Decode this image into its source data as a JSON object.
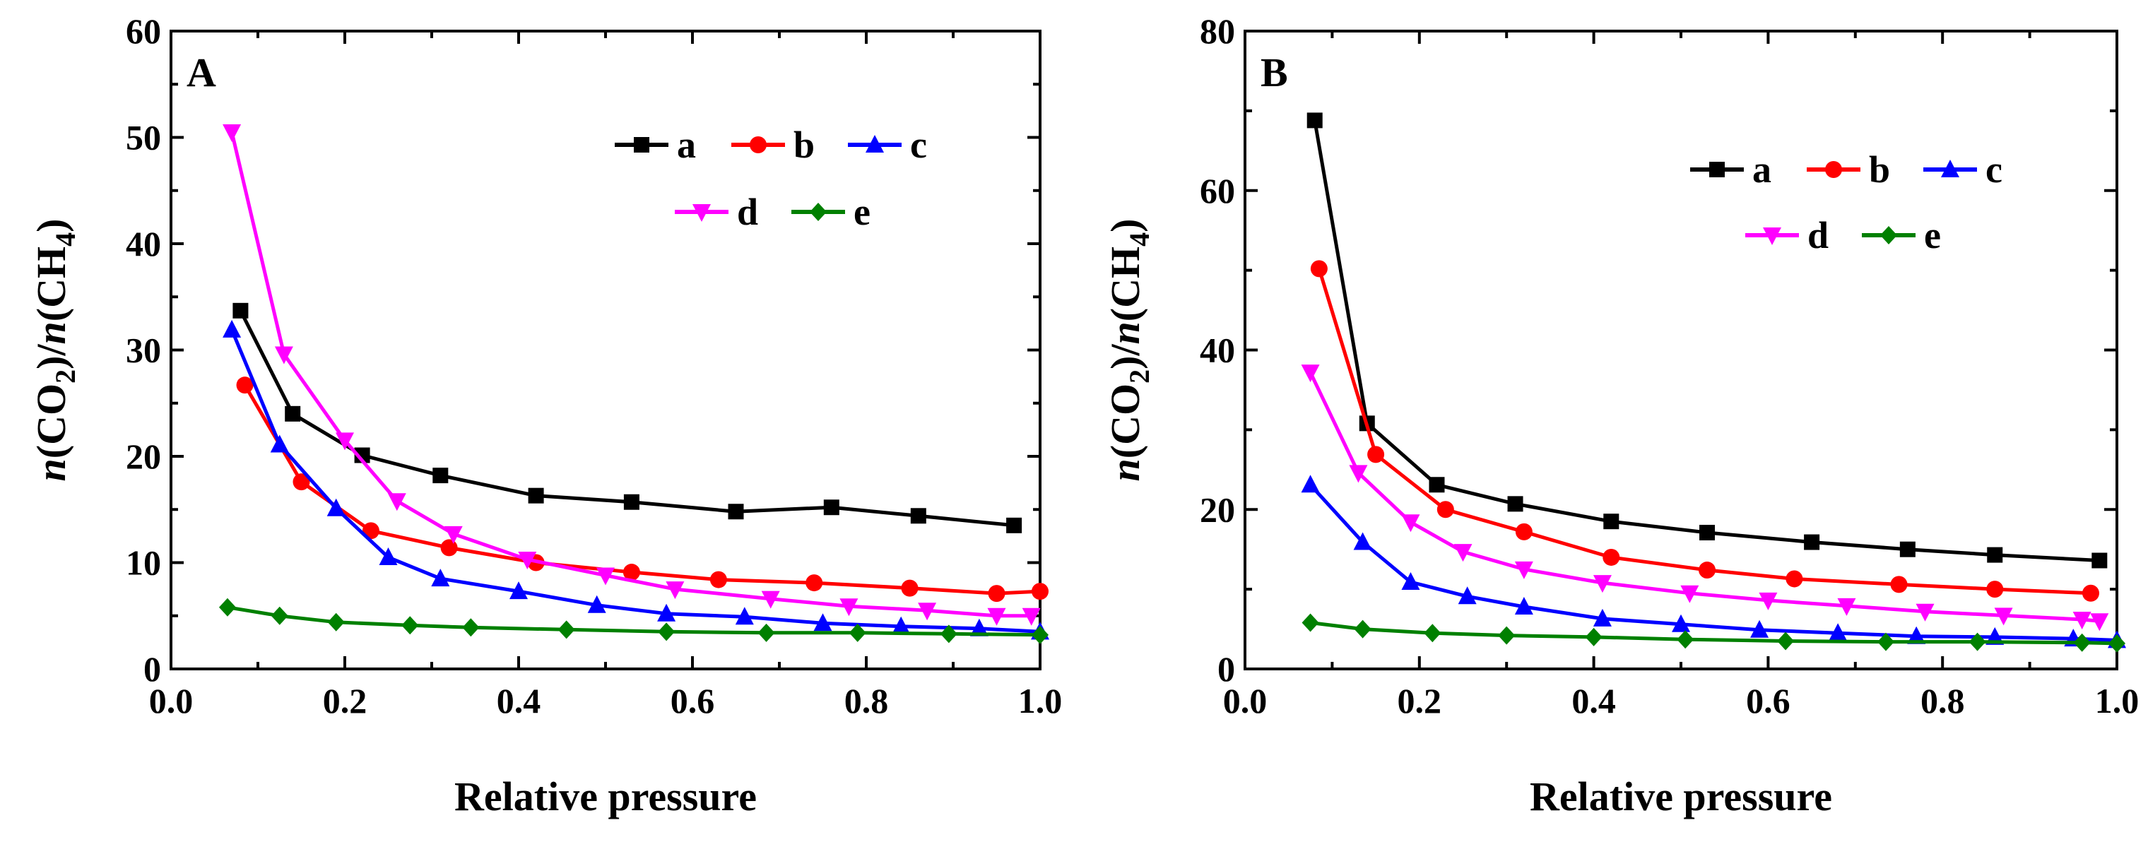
{
  "chart_data": [
    {
      "type": "line",
      "panel_label": "A",
      "xlabel": "Relative pressure",
      "ylabel": {
        "n1": "n",
        "open1": "(CO",
        "sub1": "2",
        "close1": ")/",
        "n2": "n",
        "open2": "(CH",
        "sub2": "4",
        "close2": ")"
      },
      "xlim": [
        0.0,
        1.0
      ],
      "ylim": [
        0,
        60
      ],
      "xticks": [
        "0.0",
        "0.2",
        "0.4",
        "0.6",
        "0.8",
        "1.0"
      ],
      "yticks": [
        "0",
        "10",
        "20",
        "30",
        "40",
        "50",
        "60"
      ],
      "series": [
        {
          "name": "a",
          "color": "#000000",
          "marker": "square",
          "x": [
            0.08,
            0.14,
            0.22,
            0.31,
            0.42,
            0.53,
            0.65,
            0.76,
            0.86,
            0.97
          ],
          "y": [
            33.7,
            24.0,
            20.1,
            18.2,
            16.3,
            15.7,
            14.8,
            15.2,
            14.4,
            13.5
          ]
        },
        {
          "name": "b",
          "color": "#ff0000",
          "marker": "circle",
          "x": [
            0.085,
            0.15,
            0.23,
            0.32,
            0.42,
            0.53,
            0.63,
            0.74,
            0.85,
            0.95,
            1.0
          ],
          "y": [
            26.7,
            17.6,
            13.0,
            11.4,
            10.0,
            9.1,
            8.4,
            8.1,
            7.6,
            7.1,
            7.3
          ]
        },
        {
          "name": "c",
          "color": "#0000ff",
          "marker": "triangle-up",
          "x": [
            0.07,
            0.125,
            0.19,
            0.25,
            0.31,
            0.4,
            0.49,
            0.57,
            0.66,
            0.75,
            0.84,
            0.93,
            1.0
          ],
          "y": [
            31.9,
            21.1,
            15.1,
            10.5,
            8.5,
            7.3,
            6.0,
            5.2,
            4.9,
            4.3,
            4.0,
            3.8,
            3.5
          ]
        },
        {
          "name": "d",
          "color": "#ff00ff",
          "marker": "triangle-down",
          "x": [
            0.07,
            0.13,
            0.2,
            0.26,
            0.325,
            0.41,
            0.5,
            0.58,
            0.69,
            0.78,
            0.87,
            0.95,
            0.99
          ],
          "y": [
            50.5,
            29.6,
            21.5,
            15.8,
            12.7,
            10.3,
            8.8,
            7.5,
            6.6,
            5.9,
            5.5,
            5.0,
            5.0
          ]
        },
        {
          "name": "e",
          "color": "#008000",
          "marker": "diamond",
          "x": [
            0.065,
            0.125,
            0.19,
            0.275,
            0.345,
            0.455,
            0.57,
            0.685,
            0.79,
            0.895,
            1.0
          ],
          "y": [
            5.8,
            5.0,
            4.4,
            4.1,
            3.9,
            3.7,
            3.5,
            3.4,
            3.4,
            3.3,
            3.2
          ]
        }
      ],
      "legend_rows": [
        [
          "a",
          "b",
          "c"
        ],
        [
          "d",
          "e"
        ]
      ]
    },
    {
      "type": "line",
      "panel_label": "B",
      "xlabel": "Relative pressure",
      "ylabel": {
        "n1": "n",
        "open1": "(CO",
        "sub1": "2",
        "close1": ")/",
        "n2": "n",
        "open2": "(CH",
        "sub2": "4",
        "close2": ")"
      },
      "xlim": [
        0.0,
        1.0
      ],
      "ylim": [
        0,
        80
      ],
      "xticks": [
        "0.0",
        "0.2",
        "0.4",
        "0.6",
        "0.8",
        "1.0"
      ],
      "yticks": [
        "0",
        "20",
        "40",
        "60",
        "80"
      ],
      "series": [
        {
          "name": "a",
          "color": "#000000",
          "marker": "square",
          "x": [
            0.08,
            0.14,
            0.22,
            0.31,
            0.42,
            0.53,
            0.65,
            0.76,
            0.86,
            0.98
          ],
          "y": [
            68.8,
            30.8,
            23.1,
            20.7,
            18.5,
            17.1,
            15.9,
            15.0,
            14.3,
            13.6
          ]
        },
        {
          "name": "b",
          "color": "#ff0000",
          "marker": "circle",
          "x": [
            0.085,
            0.15,
            0.23,
            0.32,
            0.42,
            0.53,
            0.63,
            0.75,
            0.86,
            0.97
          ],
          "y": [
            50.2,
            26.9,
            20.0,
            17.2,
            14.0,
            12.4,
            11.3,
            10.6,
            10.0,
            9.5
          ]
        },
        {
          "name": "c",
          "color": "#0000ff",
          "marker": "triangle-up",
          "x": [
            0.075,
            0.135,
            0.19,
            0.255,
            0.32,
            0.41,
            0.5,
            0.59,
            0.68,
            0.77,
            0.86,
            0.95,
            1.0
          ],
          "y": [
            23.1,
            15.9,
            10.9,
            9.1,
            7.8,
            6.3,
            5.6,
            4.9,
            4.5,
            4.1,
            4.0,
            3.8,
            3.6
          ]
        },
        {
          "name": "d",
          "color": "#ff00ff",
          "marker": "triangle-down",
          "x": [
            0.075,
            0.13,
            0.19,
            0.25,
            0.32,
            0.41,
            0.51,
            0.6,
            0.69,
            0.78,
            0.87,
            0.96,
            0.98
          ],
          "y": [
            37.2,
            24.6,
            18.4,
            14.7,
            12.5,
            10.8,
            9.5,
            8.6,
            7.9,
            7.2,
            6.7,
            6.2,
            6.0
          ]
        },
        {
          "name": "e",
          "color": "#008000",
          "marker": "diamond",
          "x": [
            0.075,
            0.135,
            0.215,
            0.3,
            0.4,
            0.505,
            0.62,
            0.735,
            0.84,
            0.96,
            1.0
          ],
          "y": [
            5.8,
            5.0,
            4.5,
            4.2,
            4.0,
            3.7,
            3.5,
            3.4,
            3.4,
            3.3,
            3.2
          ]
        }
      ],
      "legend_rows": [
        [
          "a",
          "b",
          "c"
        ],
        [
          "d",
          "e"
        ]
      ]
    }
  ]
}
